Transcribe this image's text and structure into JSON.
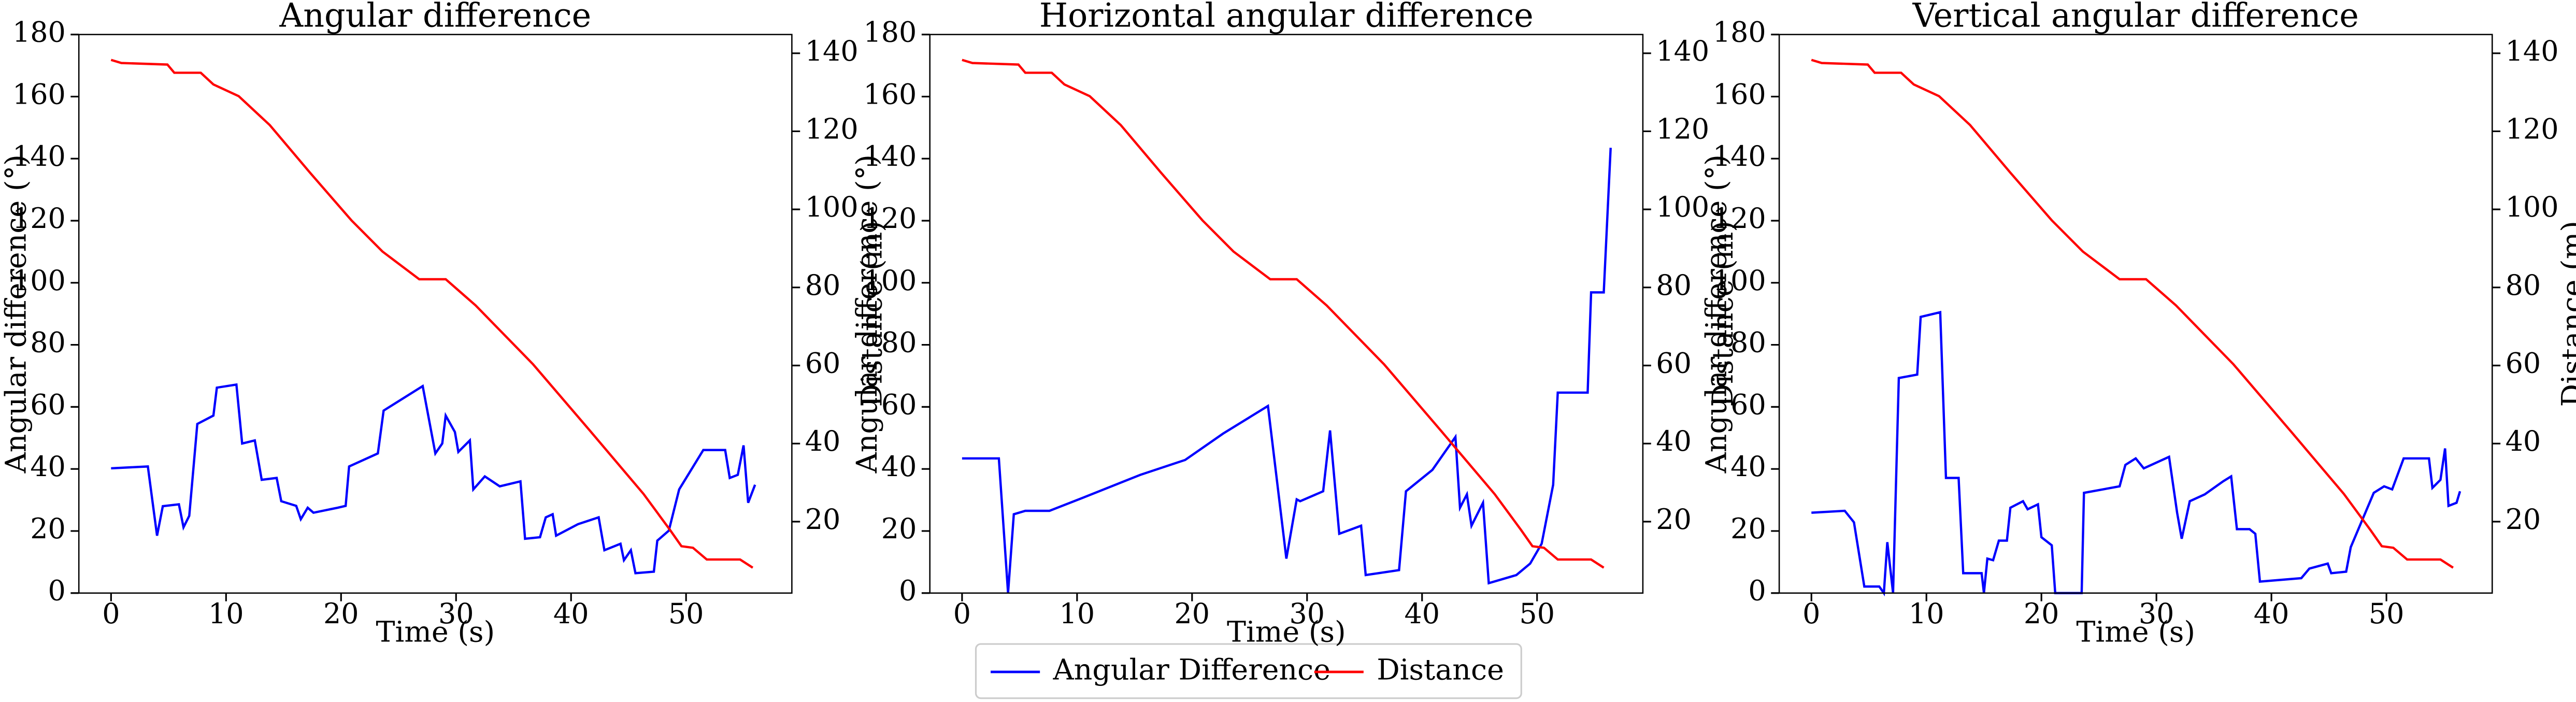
{
  "chart_data": [
    {
      "type": "line",
      "title": "Angular difference",
      "xlabel": "Time (s)",
      "ylabel": "Angular difference (°)",
      "y2label": "Distance (m)",
      "xlim": [
        -2.8,
        59.2
      ],
      "xticks": [
        0,
        10,
        20,
        30,
        40,
        50
      ],
      "ylim": [
        0,
        180
      ],
      "yticks": [
        0,
        20,
        40,
        60,
        80,
        100,
        120,
        140,
        160,
        180
      ],
      "y2lim": [
        1.7,
        144.8
      ],
      "y2ticks": [
        20,
        40,
        60,
        80,
        100,
        120,
        140
      ],
      "series": [
        {
          "name": "Angular Difference",
          "color": "#0000ff",
          "x": [
            0,
            3.2,
            3.6,
            4.0,
            4.5,
            5.9,
            6.3,
            6.8,
            7.5,
            8.9,
            9.2,
            10.9,
            11.4,
            12.5,
            13.1,
            14.4,
            14.8,
            16.1,
            16.5,
            17.1,
            17.6,
            19.7,
            20.4,
            20.7,
            23.2,
            23.7,
            27.1,
            28.2,
            28.8,
            29.1,
            29.9,
            30.2,
            31.2,
            31.5,
            32.5,
            33.8,
            35.6,
            36.0,
            37.3,
            37.8,
            38.4,
            38.7,
            40.6,
            42.4,
            42.9,
            44.3,
            44.6,
            45.2,
            45.6,
            47.2,
            47.5,
            48.5,
            49.4,
            51.5,
            53.4,
            53.8,
            54.5,
            55.0,
            55.4,
            56.0
          ],
          "values": [
            40.2,
            40.8,
            29.6,
            18.5,
            28,
            28.6,
            21.2,
            24.9,
            54.5,
            57.2,
            66.2,
            67.2,
            48.2,
            49.2,
            36.5,
            37.1,
            29.6,
            28.1,
            23.8,
            27.5,
            25.9,
            27.5,
            28.1,
            40.8,
            45,
            58.8,
            66.7,
            45,
            48.2,
            57.2,
            51.9,
            45.5,
            49.2,
            33.4,
            37.6,
            34.4,
            36,
            17.5,
            18,
            24.4,
            25.4,
            18.5,
            22.2,
            24.4,
            13.8,
            15.9,
            10.6,
            13.8,
            6.4,
            6.9,
            16.9,
            20.1,
            33.4,
            46.1,
            46.1,
            37.1,
            38.1,
            47.6,
            29.1,
            34.9
          ]
        },
        {
          "name": "Distance",
          "color": "#ff0000",
          "axis": "y2",
          "x": [
            0,
            0.9,
            4.9,
            5.5,
            7.8,
            8.9,
            11.1,
            13.8,
            17.3,
            20.9,
            23.6,
            26.8,
            29.1,
            31.7,
            36.7,
            41.7,
            46.3,
            48.6,
            49.6,
            50.6,
            51.8,
            54.7,
            55.8
          ],
          "values": [
            138.3,
            137.5,
            137.1,
            135,
            135,
            132,
            129,
            121.6,
            109.4,
            97.2,
            89.2,
            82.1,
            82.1,
            75.4,
            60.3,
            43.1,
            27.1,
            17.9,
            13.7,
            13.3,
            10.3,
            10.3,
            8.2
          ]
        }
      ]
    },
    {
      "type": "line",
      "title": "Horizontal angular difference",
      "xlabel": "Time (s)",
      "ylabel": "Angular difference (°)",
      "y2label": "Distance (m)",
      "xlim": [
        -2.8,
        59.2
      ],
      "xticks": [
        0,
        10,
        20,
        30,
        40,
        50
      ],
      "ylim": [
        0,
        180
      ],
      "yticks": [
        0,
        20,
        40,
        60,
        80,
        100,
        120,
        140,
        160,
        180
      ],
      "y2lim": [
        1.7,
        144.8
      ],
      "y2ticks": [
        20,
        40,
        60,
        80,
        100,
        120,
        140
      ],
      "series": [
        {
          "name": "Angular Difference",
          "color": "#0000ff",
          "x": [
            0,
            3.2,
            4.0,
            4.5,
            5.5,
            7.6,
            10.5,
            15.5,
            19.4,
            22.7,
            26.6,
            28.2,
            29.1,
            29.4,
            31.4,
            32.0,
            32.8,
            34.7,
            35.1,
            38.0,
            38.6,
            40.9,
            42.9,
            43.3,
            43.9,
            44.3,
            45.3,
            45.8,
            48.2,
            49.4,
            50.4,
            51.4,
            51.8,
            54.4,
            54.7,
            55.8,
            56.4
          ],
          "values": [
            43.4,
            43.4,
            0,
            25.4,
            26.5,
            26.5,
            30.7,
            38.1,
            42.9,
            51.4,
            60.3,
            11.1,
            30.2,
            29.6,
            32.8,
            52.4,
            19.1,
            21.7,
            5.8,
            7.4,
            32.8,
            39.7,
            50.3,
            27.5,
            31.8,
            21.7,
            29.1,
            3.2,
            5.8,
            9.5,
            15.9,
            34.9,
            64.6,
            64.6,
            96.9,
            96.9,
            143.5
          ]
        },
        {
          "name": "Distance",
          "color": "#ff0000",
          "axis": "y2",
          "x": [
            0,
            0.9,
            4.9,
            5.5,
            7.8,
            8.9,
            11.1,
            13.8,
            17.3,
            20.9,
            23.6,
            26.8,
            29.1,
            31.7,
            36.7,
            41.7,
            46.3,
            48.6,
            49.6,
            50.6,
            51.8,
            54.7,
            55.8
          ],
          "values": [
            138.3,
            137.5,
            137.1,
            135,
            135,
            132,
            129,
            121.6,
            109.4,
            97.2,
            89.2,
            82.1,
            82.1,
            75.4,
            60.3,
            43.1,
            27.1,
            17.9,
            13.7,
            13.3,
            10.3,
            10.3,
            8.2
          ]
        }
      ]
    },
    {
      "type": "line",
      "title": "Vertical angular difference",
      "xlabel": "Time (s)",
      "ylabel": "Angular difference (°)",
      "y2label": "Distance (m)",
      "xlim": [
        -2.8,
        59.2
      ],
      "xticks": [
        0,
        10,
        20,
        30,
        40,
        50
      ],
      "ylim": [
        0,
        180
      ],
      "yticks": [
        0,
        20,
        40,
        60,
        80,
        100,
        120,
        140,
        160,
        180
      ],
      "y2lim": [
        1.7,
        144.8
      ],
      "y2ticks": [
        20,
        40,
        60,
        80,
        100,
        120,
        140
      ],
      "series": [
        {
          "name": "Angular Difference",
          "color": "#0000ff",
          "x": [
            0,
            2.9,
            3.7,
            4.6,
            5.9,
            6.3,
            6.6,
            7.1,
            7.6,
            9.2,
            9.5,
            11.2,
            11.7,
            12.8,
            13.2,
            14.8,
            15.0,
            15.3,
            15.8,
            16.3,
            17.0,
            17.3,
            18.4,
            18.8,
            19.7,
            20.0,
            20.9,
            21.2,
            23.5,
            23.7,
            26.8,
            27.3,
            28.2,
            28.9,
            31.1,
            31.8,
            32.2,
            32.9,
            34.2,
            35.8,
            36.5,
            37.0,
            38.1,
            38.6,
            39.0,
            42.6,
            43.3,
            44.9,
            45.2,
            46.5,
            46.9,
            48.9,
            49.8,
            50.5,
            51.5,
            53.7,
            54.0,
            54.7,
            55.1,
            55.4,
            56.1,
            56.4
          ],
          "values": [
            25.9,
            26.5,
            22.8,
            2.1,
            2.1,
            0,
            16.4,
            0,
            69.3,
            70.4,
            89,
            90.5,
            37.1,
            37.1,
            6.4,
            6.4,
            0,
            11.1,
            10.6,
            16.9,
            16.9,
            27.5,
            29.6,
            27,
            28.6,
            18,
            15.4,
            0,
            0,
            32.3,
            34.4,
            41.3,
            43.4,
            40.2,
            43.9,
            25.9,
            17.5,
            29.6,
            31.8,
            36,
            37.6,
            20.6,
            20.6,
            19.1,
            3.7,
            4.8,
            7.9,
            9.5,
            6.4,
            6.9,
            14.8,
            32.3,
            34.4,
            33.4,
            43.4,
            43.4,
            33.9,
            36.5,
            46.6,
            28.1,
            29.1,
            32.8
          ]
        },
        {
          "name": "Distance",
          "color": "#ff0000",
          "axis": "y2",
          "x": [
            0,
            0.9,
            4.9,
            5.5,
            7.8,
            8.9,
            11.1,
            13.8,
            17.3,
            20.9,
            23.6,
            26.8,
            29.1,
            31.7,
            36.7,
            41.7,
            46.3,
            48.6,
            49.6,
            50.6,
            51.8,
            54.7,
            55.8
          ],
          "values": [
            138.3,
            137.5,
            137.1,
            135,
            135,
            132,
            129,
            121.6,
            109.4,
            97.2,
            89.2,
            82.1,
            82.1,
            75.4,
            60.3,
            43.1,
            27.1,
            17.9,
            13.7,
            13.3,
            10.3,
            10.3,
            8.2
          ]
        }
      ]
    }
  ]
}
